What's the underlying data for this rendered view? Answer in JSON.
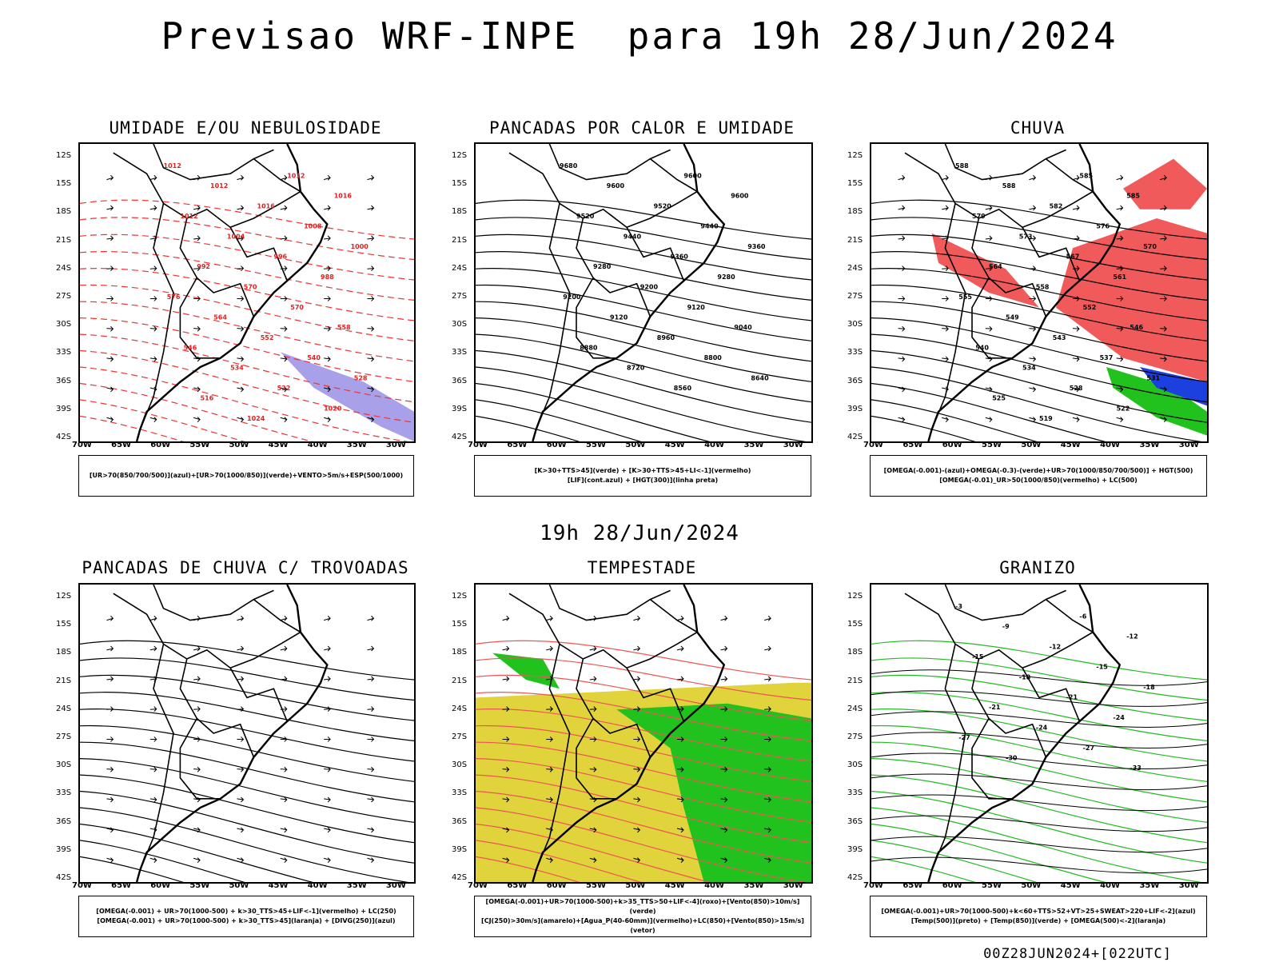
{
  "title": "Previsao WRF-INPE  para 19h 28/Jun/2024",
  "middle_title": "19h 28/Jun/2024",
  "footer": "00Z28JUN2024+[022UTC]",
  "lat_ticks": [
    "12S",
    "15S",
    "18S",
    "21S",
    "24S",
    "27S",
    "30S",
    "33S",
    "36S",
    "39S",
    "42S"
  ],
  "lon_ticks": [
    "70W",
    "65W",
    "60W",
    "55W",
    "50W",
    "45W",
    "40W",
    "35W",
    "30W"
  ],
  "panels": {
    "umidade": {
      "title": "UMIDADE E/OU NEBULOSIDADE",
      "legend": [
        "[UR>70(850/700/500)](azul)+[UR>70(1000/850)](verde)+VENTO>5m/s+ESP(500/1000)"
      ],
      "contour_labels": [
        "1012",
        "1012",
        "1012",
        "1016",
        "1016",
        "1012",
        "1008",
        "1004",
        "1000",
        "996",
        "992",
        "988",
        "570",
        "576",
        "570",
        "564",
        "558",
        "552",
        "546",
        "540",
        "534",
        "528",
        "522",
        "516",
        "1020",
        "1024"
      ]
    },
    "pancadas": {
      "title": "PANCADAS POR CALOR E UMIDADE",
      "legend": [
        "[K>30+TTS>45](verde) + [K>30+TTS>45+LI<-1](vermelho)",
        "[LIF](cont.azul) + [HGT(300)](linha preta)"
      ],
      "contour_labels": [
        "9680",
        "9600",
        "9600",
        "9600",
        "9520",
        "9520",
        "9440",
        "9440",
        "9360",
        "9360",
        "9280",
        "9280",
        "9200",
        "9200",
        "9120",
        "9120",
        "9040",
        "8960",
        "8880",
        "8800",
        "8720",
        "8640",
        "8560"
      ]
    },
    "chuva": {
      "title": "CHUVA",
      "legend": [
        "[OMEGA(-0.001)-(azul)+OMEGA(-0.3)-(verde)+UR>70(1000/850/700/500)] + HGT(500)",
        "[OMEGA(-0.01)_UR>50(1000/850)(vermelho) + LC(500)"
      ],
      "contour_labels": [
        "588",
        "585",
        "588",
        "585",
        "582",
        "579",
        "576",
        "573",
        "570",
        "567",
        "564",
        "561",
        "558",
        "555",
        "552",
        "549",
        "546",
        "543",
        "540",
        "537",
        "534",
        "531",
        "528",
        "525",
        "522",
        "519"
      ]
    },
    "trovoadas": {
      "title": "PANCADAS DE CHUVA C/ TROVOADAS",
      "legend": [
        "[OMEGA(-0.001) + UR>70(1000-500) + k>30_TTS>45+LIF<-1](vermelho) + LC(250)",
        "[OMEGA(-0.001) + UR>70(1000-500) + k>30_TTS>45](laranja) + [DIVG(250)](azul)"
      ]
    },
    "tempestade": {
      "title": "TEMPESTADE",
      "legend": [
        "[OMEGA(-0.001)+UR>70(1000-500)+k>35_TTS>50+LIF<-4](roxo)+[Vento(850)>10m/s](verde)",
        "[CJ(250)>30m/s](amarelo)+[Agua_P(40-60mm)](vermelho)+LC(850)+[Vento(850)>15m/s](vetor)"
      ]
    },
    "granizo": {
      "title": "GRANIZO",
      "legend": [
        "[OMEGA(-0.001)+UR>70(1000-500)+k<60+TTS>52+VT>25+SWEAT>220+LIF<-2](azul)",
        "[Temp(500)](preto) + [Temp(850)](verde) + [OMEGA(500)<-2](laranja)"
      ],
      "contour_labels": [
        "-3",
        "-6",
        "-9",
        "-12",
        "-12",
        "-15",
        "-15",
        "-18",
        "-18",
        "-21",
        "-21",
        "-24",
        "-24",
        "-27",
        "-27",
        "-30",
        "-33"
      ]
    }
  }
}
